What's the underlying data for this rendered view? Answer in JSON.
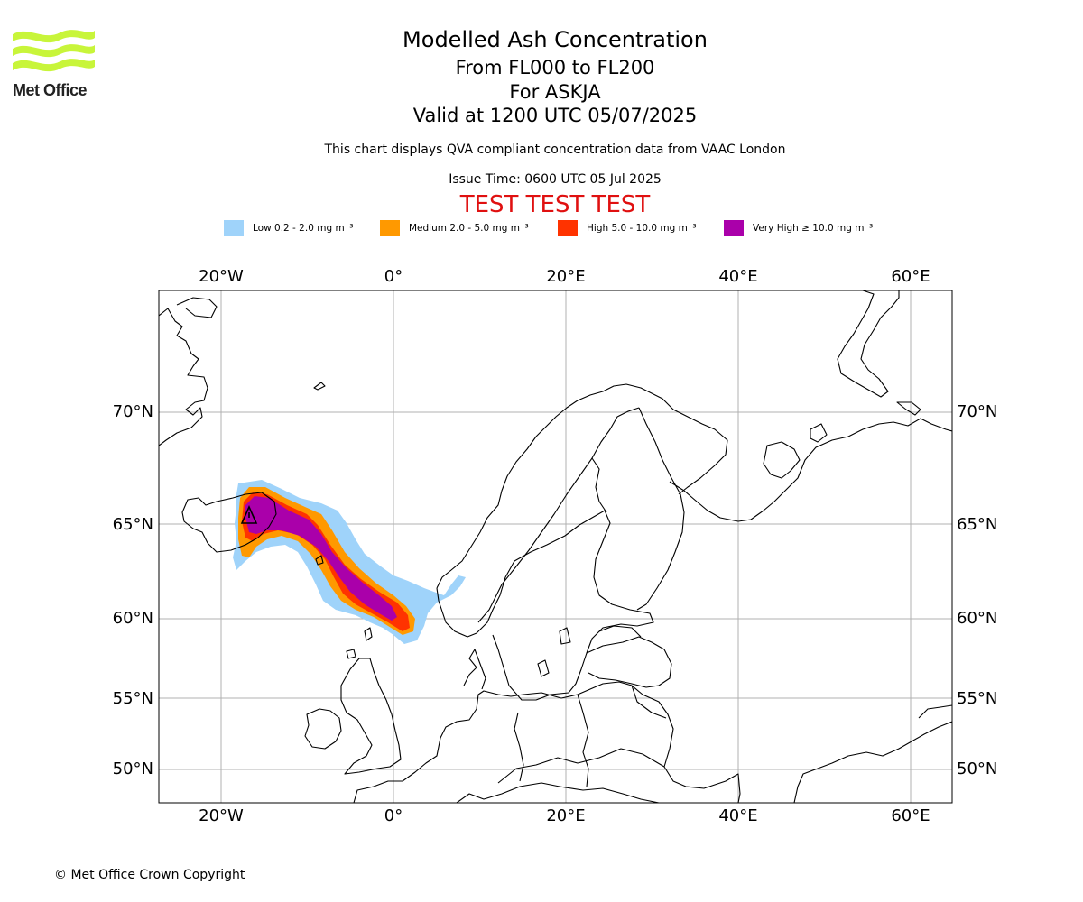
{
  "logo": {
    "text": "Met Office",
    "color": "#c8f53a"
  },
  "header": {
    "title": "Modelled Ash Concentration",
    "levels": "From FL000 to FL200",
    "volcano": "For ASKJA",
    "valid": "Valid at 1200 UTC 05/07/2025",
    "description": "This chart displays QVA compliant concentration data from VAAC London",
    "issue": "Issue Time: 0600 UTC 05 Jul 2025",
    "test_banner": "TEST TEST TEST",
    "test_color": "#e01010"
  },
  "legend": [
    {
      "label": "Low 0.2 - 2.0 mg m⁻³",
      "color": "#9fd3fa"
    },
    {
      "label": "Medium 2.0 - 5.0 mg m⁻³",
      "color": "#ff9900"
    },
    {
      "label": "High 5.0 - 10.0 mg m⁻³",
      "color": "#ff3300"
    },
    {
      "label": "Very High  ≥  10.0 mg m⁻³",
      "color": "#aa00aa"
    }
  ],
  "map": {
    "projection": "Polar stereographic (North Europe / North Atlantic)",
    "lon_ticks": [
      "20°W",
      "0°",
      "20°E",
      "40°E",
      "60°E"
    ],
    "lat_ticks": [
      "70°N",
      "65°N",
      "60°N",
      "55°N",
      "50°N"
    ],
    "gridlines": true,
    "volcano_marker": "warning-triangle"
  },
  "copyright": "© Met Office Crown Copyright"
}
